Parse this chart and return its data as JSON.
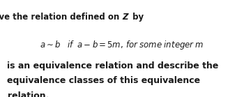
{
  "background_color": "#ffffff",
  "title_pre": "Prove the relation defined on ",
  "title_italic": "Z",
  "title_post": " by",
  "line3_text": "is an equivalence relation and describe the",
  "line4_text": "equivalence classes of this equivalence",
  "line5_text": "relation.",
  "title_fontsize": 8.5,
  "formula_fontsize": 8.5,
  "body_fontsize": 9.0,
  "text_color": "#1a1a1a"
}
